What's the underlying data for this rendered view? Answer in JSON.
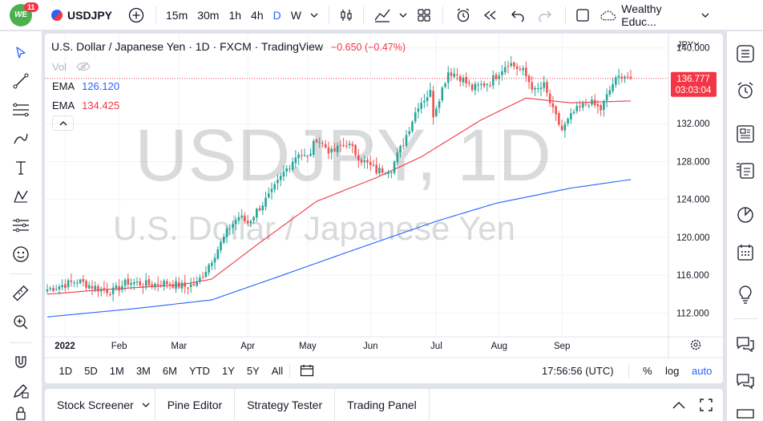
{
  "topbar": {
    "badge_count": "11",
    "symbol": "USDJPY",
    "intervals": [
      "15m",
      "30m",
      "1h",
      "4h",
      "D",
      "W"
    ],
    "active_interval": "D",
    "layout_name": "Wealthy Educ..."
  },
  "legend": {
    "title": "U.S. Dollar / Japanese Yen · 1D · FXCM · TradingView",
    "change": "−0.650 (−0.47%)",
    "vol_label": "Vol",
    "ema1_label": "EMA",
    "ema1_value": "126.120",
    "ema2_label": "EMA",
    "ema2_value": "134.425"
  },
  "watermark": {
    "symbol": "USDJPY, 1D",
    "name": "U.S. Dollar / Japanese Yen"
  },
  "price_axis": {
    "currency": "JPY",
    "current_price": "136.777",
    "countdown": "03:03:04"
  },
  "ranges": [
    "1D",
    "5D",
    "1M",
    "3M",
    "6M",
    "YTD",
    "1Y",
    "5Y",
    "All"
  ],
  "footer_right": {
    "time": "17:56:56 (UTC)",
    "pct": "%",
    "log": "log",
    "auto": "auto"
  },
  "bottom_tabs": [
    "Stock Screener",
    "Pine Editor",
    "Strategy Tester",
    "Trading Panel"
  ],
  "colors": {
    "up": "#26a69a",
    "down": "#ef5350",
    "ema_long": "#2962ff",
    "ema_short": "#f23645",
    "accent": "#2962ff"
  },
  "chart_data": {
    "type": "candlestick",
    "x_ticks": [
      "2022",
      "Feb",
      "Mar",
      "Apr",
      "May",
      "Jun",
      "Jul",
      "Aug",
      "Sep"
    ],
    "y_ticks": [
      "140.000",
      "132.000",
      "128.000",
      "124.000",
      "120.000",
      "116.000",
      "112.000"
    ],
    "ylim": [
      109.5,
      141.5
    ],
    "close_anchors": [
      [
        0,
        114.5
      ],
      [
        10,
        115.4
      ],
      [
        18,
        114.5
      ],
      [
        22,
        114.3
      ],
      [
        27,
        115.3
      ],
      [
        34,
        115.0
      ],
      [
        40,
        115.2
      ],
      [
        46,
        114.8
      ],
      [
        50,
        115.1
      ],
      [
        53,
        116.6
      ],
      [
        57,
        118.8
      ],
      [
        61,
        121.1
      ],
      [
        64,
        122.2
      ],
      [
        67,
        121.5
      ],
      [
        70,
        122.8
      ],
      [
        75,
        124.7
      ],
      [
        79,
        126.8
      ],
      [
        84,
        129.0
      ],
      [
        87,
        128.3
      ],
      [
        90,
        130.5
      ],
      [
        95,
        128.9
      ],
      [
        100,
        130.0
      ],
      [
        105,
        128.2
      ],
      [
        110,
        127.0
      ],
      [
        115,
        127.3
      ],
      [
        119,
        130.0
      ],
      [
        124,
        134.0
      ],
      [
        128,
        135.3
      ],
      [
        129,
        133.0
      ],
      [
        134,
        137.5
      ],
      [
        137,
        137.2
      ],
      [
        142,
        135.7
      ],
      [
        148,
        136.4
      ],
      [
        154,
        138.5
      ],
      [
        159,
        137.5
      ],
      [
        163,
        135.4
      ],
      [
        166,
        136.0
      ],
      [
        169,
        133.3
      ],
      [
        172,
        131.3
      ],
      [
        176,
        133.2
      ],
      [
        181,
        134.3
      ],
      [
        185,
        133.5
      ],
      [
        189,
        136.2
      ],
      [
        192,
        137.2
      ],
      [
        195,
        136.8
      ]
    ],
    "ema_long_anchors": [
      [
        0,
        111.6
      ],
      [
        30,
        112.5
      ],
      [
        55,
        113.4
      ],
      [
        75,
        115.6
      ],
      [
        100,
        118.4
      ],
      [
        130,
        121.7
      ],
      [
        150,
        123.6
      ],
      [
        175,
        125.2
      ],
      [
        195,
        126.1
      ]
    ],
    "ema_short_anchors": [
      [
        0,
        114.0
      ],
      [
        20,
        114.5
      ],
      [
        45,
        115.0
      ],
      [
        55,
        115.6
      ],
      [
        70,
        119.2
      ],
      [
        90,
        123.8
      ],
      [
        110,
        126.3
      ],
      [
        125,
        128.5
      ],
      [
        145,
        132.4
      ],
      [
        160,
        134.7
      ],
      [
        175,
        134.2
      ],
      [
        195,
        134.4
      ]
    ],
    "series": [
      {
        "name": "EMA",
        "value": "126.120"
      },
      {
        "name": "EMA",
        "value": "134.425"
      }
    ]
  }
}
